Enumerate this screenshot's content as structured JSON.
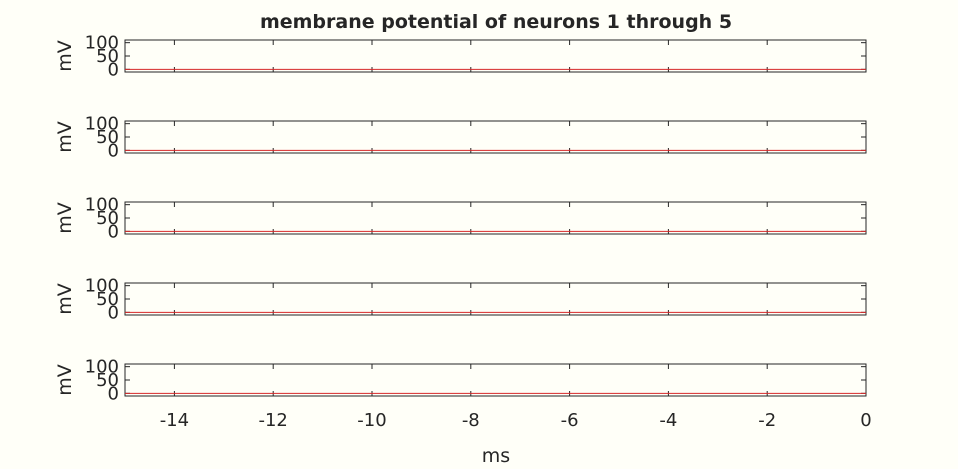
{
  "chart_data": {
    "type": "line",
    "title": "membrane potential of neurons 1 through 5",
    "xlabel": "ms",
    "ylabel": "mV",
    "xlim": [
      -15,
      0
    ],
    "ylim": [
      -10,
      110
    ],
    "xticks": [
      -14,
      -12,
      -10,
      -8,
      -6,
      -4,
      -2,
      0
    ],
    "xtick_labels": [
      "-14",
      "-12",
      "-10",
      "-8",
      "-6",
      "-4",
      "-2",
      "0"
    ],
    "yticks": [
      0,
      50,
      100
    ],
    "ytick_labels": [
      "0",
      "50",
      "100"
    ],
    "grid": false,
    "legend": "none",
    "line_color": "#d62728",
    "panels": [
      {
        "series": [
          {
            "x": [
              -15,
              0
            ],
            "y": [
              0,
              0
            ]
          }
        ]
      },
      {
        "series": [
          {
            "x": [
              -15,
              0
            ],
            "y": [
              0,
              0
            ]
          }
        ]
      },
      {
        "series": [
          {
            "x": [
              -15,
              0
            ],
            "y": [
              0,
              0
            ]
          }
        ]
      },
      {
        "series": [
          {
            "x": [
              -15,
              0
            ],
            "y": [
              0,
              0
            ]
          }
        ]
      },
      {
        "series": [
          {
            "x": [
              -15,
              0
            ],
            "y": [
              0,
              0
            ]
          }
        ]
      }
    ]
  }
}
